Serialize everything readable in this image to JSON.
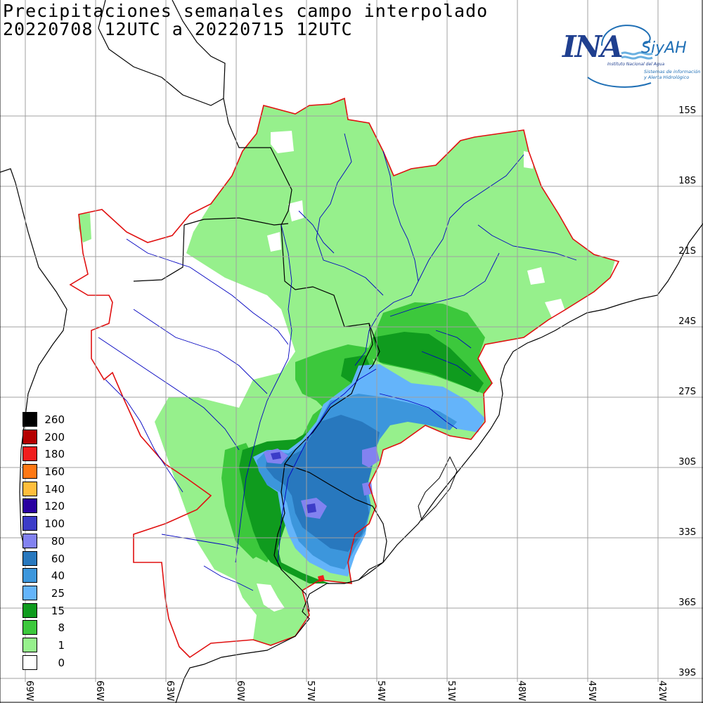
{
  "title": {
    "line1": "Precipitaciones semanales campo interpolado",
    "line2": "20220708 12UTC a 20220715 12UTC"
  },
  "logo": {
    "ina": "INA",
    "siyah": "SiyAH",
    "institute": "Instituto Nacional del Agua",
    "system_line1": "Sistemas de información",
    "system_line2": "y Alerta Hidrológico"
  },
  "latitude_labels": [
    "15S",
    "18S",
    "21S",
    "24S",
    "27S",
    "30S",
    "33S",
    "36S",
    "39S"
  ],
  "longitude_labels": [
    "69W",
    "66W",
    "63W",
    "60W",
    "57W",
    "54W",
    "51W",
    "48W",
    "45W",
    "42W"
  ],
  "legend": [
    {
      "label": "260",
      "color": "#000000"
    },
    {
      "label": "200",
      "color": "#b40000"
    },
    {
      "label": "180",
      "color": "#f01e1e"
    },
    {
      "label": "160",
      "color": "#ff7814"
    },
    {
      "label": "140",
      "color": "#ffbe3c"
    },
    {
      "label": "120",
      "color": "#2800a0"
    },
    {
      "label": "100",
      "color": "#3c3cc8"
    },
    {
      "label": "80",
      "color": "#8282f0"
    },
    {
      "label": "60",
      "color": "#2878be"
    },
    {
      "label": "40",
      "color": "#3c96dc"
    },
    {
      "label": "25",
      "color": "#64b4fa"
    },
    {
      "label": "15",
      "color": "#0f9b1e"
    },
    {
      "label": "8",
      "color": "#3cc83c"
    },
    {
      "label": "1",
      "color": "#96f08c"
    },
    {
      "label": "0",
      "color": "#ffffff"
    }
  ],
  "colors": {
    "grid": "#a0a0a0",
    "basin_boundary": "#e01010",
    "rivers": "#0000c0",
    "borders": "#000000"
  }
}
